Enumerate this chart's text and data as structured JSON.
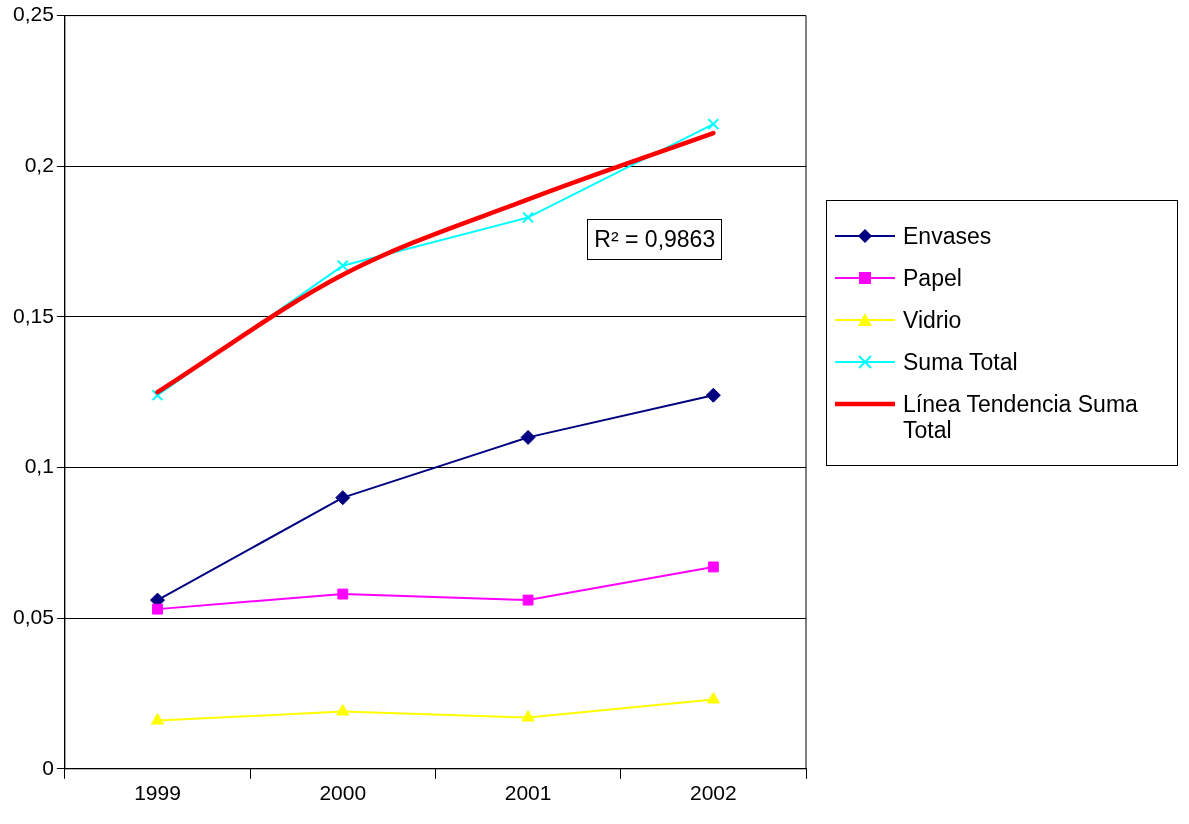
{
  "chart_data": {
    "type": "line",
    "categories": [
      "1999",
      "2000",
      "2001",
      "2002"
    ],
    "series": [
      {
        "name": "Envases",
        "color": "#000080",
        "marker": "diamond",
        "values": [
          0.056,
          0.09,
          0.11,
          0.124
        ]
      },
      {
        "name": "Papel",
        "color": "#ff00ff",
        "marker": "square",
        "values": [
          0.053,
          0.058,
          0.056,
          0.067
        ]
      },
      {
        "name": "Vidrio",
        "color": "#ffff00",
        "marker": "triangle",
        "values": [
          0.016,
          0.019,
          0.017,
          0.023
        ]
      },
      {
        "name": "Suma Total",
        "color": "#00ffff",
        "marker": "cross",
        "values": [
          0.124,
          0.167,
          0.183,
          0.214
        ]
      },
      {
        "name": "Línea Tendencia Suma Total",
        "color": "#ff0000",
        "marker": "none",
        "values": [
          0.125,
          0.164,
          0.189,
          0.211
        ]
      }
    ],
    "ylim": [
      0,
      0.25
    ],
    "yticks": [
      0,
      {
        "value": 0.05,
        "label": "0,05"
      },
      {
        "value": 0.1,
        "label": "0,1"
      },
      {
        "value": 0.15,
        "label": "0,15"
      },
      {
        "value": 0.2,
        "label": "0,2"
      },
      {
        "value": 0.25,
        "label": "0,25"
      }
    ],
    "grid": "y",
    "legend": "right",
    "annotations": [
      "R² = 0,9863"
    ]
  }
}
